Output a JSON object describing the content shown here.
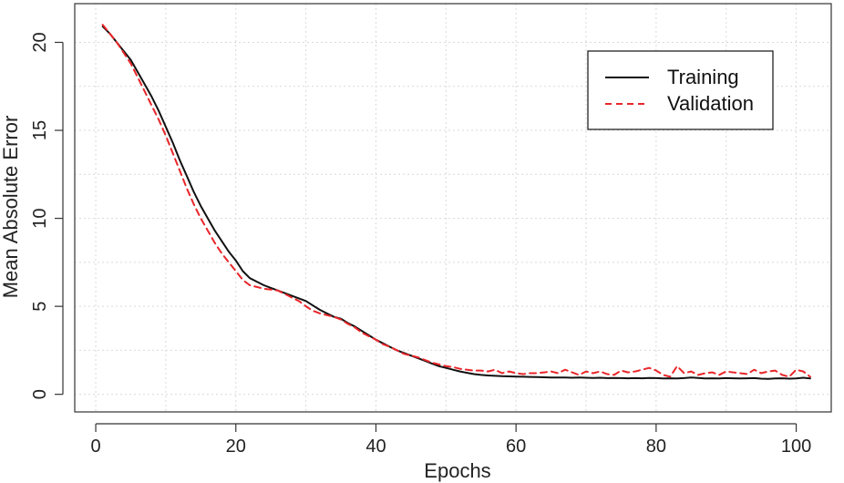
{
  "chart_data": {
    "type": "line",
    "title": "",
    "xlabel": "Epochs",
    "ylabel": "Mean Absolute Error",
    "xlim": [
      -3,
      105
    ],
    "ylim": [
      -1,
      22.2
    ],
    "xticks": [
      0,
      20,
      40,
      60,
      80,
      100
    ],
    "yticks": [
      0,
      5,
      10,
      15,
      20
    ],
    "grid": true,
    "legend_position": "top-right",
    "series": [
      {
        "name": "Training",
        "color": "#111111",
        "style": "solid",
        "x": [
          1,
          2,
          3,
          4,
          5,
          6,
          7,
          8,
          9,
          10,
          11,
          12,
          13,
          14,
          15,
          16,
          17,
          18,
          19,
          20,
          21,
          22,
          23,
          24,
          25,
          26,
          27,
          28,
          29,
          30,
          31,
          32,
          33,
          34,
          35,
          36,
          37,
          38,
          39,
          40,
          41,
          42,
          43,
          44,
          45,
          46,
          47,
          48,
          49,
          50,
          51,
          52,
          53,
          54,
          55,
          56,
          57,
          58,
          59,
          60,
          61,
          62,
          63,
          64,
          65,
          66,
          67,
          68,
          69,
          70,
          71,
          72,
          73,
          74,
          75,
          76,
          77,
          78,
          79,
          80,
          81,
          82,
          83,
          84,
          85,
          86,
          87,
          88,
          89,
          90,
          91,
          92,
          93,
          94,
          95,
          96,
          97,
          98,
          99,
          100,
          101,
          102
        ],
        "values": [
          20.9,
          20.5,
          20.0,
          19.5,
          19.0,
          18.3,
          17.6,
          16.9,
          16.1,
          15.2,
          14.3,
          13.3,
          12.4,
          11.5,
          10.7,
          10.0,
          9.3,
          8.7,
          8.1,
          7.6,
          7.0,
          6.6,
          6.4,
          6.2,
          6.05,
          5.9,
          5.75,
          5.6,
          5.45,
          5.3,
          5.05,
          4.8,
          4.6,
          4.4,
          4.3,
          4.05,
          3.85,
          3.6,
          3.35,
          3.1,
          2.9,
          2.7,
          2.5,
          2.35,
          2.2,
          2.05,
          1.9,
          1.75,
          1.6,
          1.5,
          1.4,
          1.3,
          1.22,
          1.15,
          1.1,
          1.07,
          1.05,
          1.03,
          1.02,
          1.01,
          1.0,
          0.99,
          0.98,
          0.97,
          0.96,
          0.95,
          0.96,
          0.94,
          0.95,
          0.94,
          0.93,
          0.94,
          0.92,
          0.93,
          0.92,
          0.91,
          0.92,
          0.91,
          0.93,
          0.92,
          0.9,
          0.91,
          0.9,
          0.92,
          0.95,
          0.93,
          0.9,
          0.91,
          0.9,
          0.92,
          0.91,
          0.9,
          0.91,
          0.92,
          0.89,
          0.88,
          0.9,
          0.91,
          0.89,
          0.9,
          0.94,
          0.9
        ]
      },
      {
        "name": "Validation",
        "color": "#e8262a",
        "style": "dashed",
        "x": [
          1,
          2,
          3,
          4,
          5,
          6,
          7,
          8,
          9,
          10,
          11,
          12,
          13,
          14,
          15,
          16,
          17,
          18,
          19,
          20,
          21,
          22,
          23,
          24,
          25,
          26,
          27,
          28,
          29,
          30,
          31,
          32,
          33,
          34,
          35,
          36,
          37,
          38,
          39,
          40,
          41,
          42,
          43,
          44,
          45,
          46,
          47,
          48,
          49,
          50,
          51,
          52,
          53,
          54,
          55,
          56,
          57,
          58,
          59,
          60,
          61,
          62,
          63,
          64,
          65,
          66,
          67,
          68,
          69,
          70,
          71,
          72,
          73,
          74,
          75,
          76,
          77,
          78,
          79,
          80,
          81,
          82,
          83,
          84,
          85,
          86,
          87,
          88,
          89,
          90,
          91,
          92,
          93,
          94,
          95,
          96,
          97,
          98,
          99,
          100,
          101,
          102
        ],
        "values": [
          21.0,
          20.5,
          20.0,
          19.4,
          18.8,
          18.0,
          17.2,
          16.4,
          15.6,
          14.7,
          13.7,
          12.7,
          11.7,
          10.8,
          10.0,
          9.3,
          8.6,
          8.0,
          7.5,
          7.0,
          6.5,
          6.2,
          6.1,
          6.0,
          5.95,
          5.9,
          5.7,
          5.5,
          5.3,
          5.0,
          4.75,
          4.6,
          4.5,
          4.4,
          4.25,
          4.0,
          3.8,
          3.5,
          3.3,
          3.1,
          2.85,
          2.7,
          2.5,
          2.3,
          2.2,
          2.1,
          1.95,
          1.8,
          1.7,
          1.6,
          1.55,
          1.45,
          1.4,
          1.35,
          1.35,
          1.3,
          1.4,
          1.2,
          1.3,
          1.2,
          1.15,
          1.2,
          1.2,
          1.25,
          1.3,
          1.2,
          1.4,
          1.25,
          1.1,
          1.3,
          1.2,
          1.3,
          1.15,
          1.1,
          1.35,
          1.25,
          1.3,
          1.4,
          1.5,
          1.35,
          1.1,
          1.0,
          1.6,
          1.2,
          1.3,
          1.1,
          1.2,
          1.25,
          1.1,
          1.3,
          1.25,
          1.2,
          1.15,
          1.4,
          1.2,
          1.3,
          1.35,
          1.1,
          1.0,
          1.4,
          1.3,
          1.0
        ]
      }
    ]
  }
}
